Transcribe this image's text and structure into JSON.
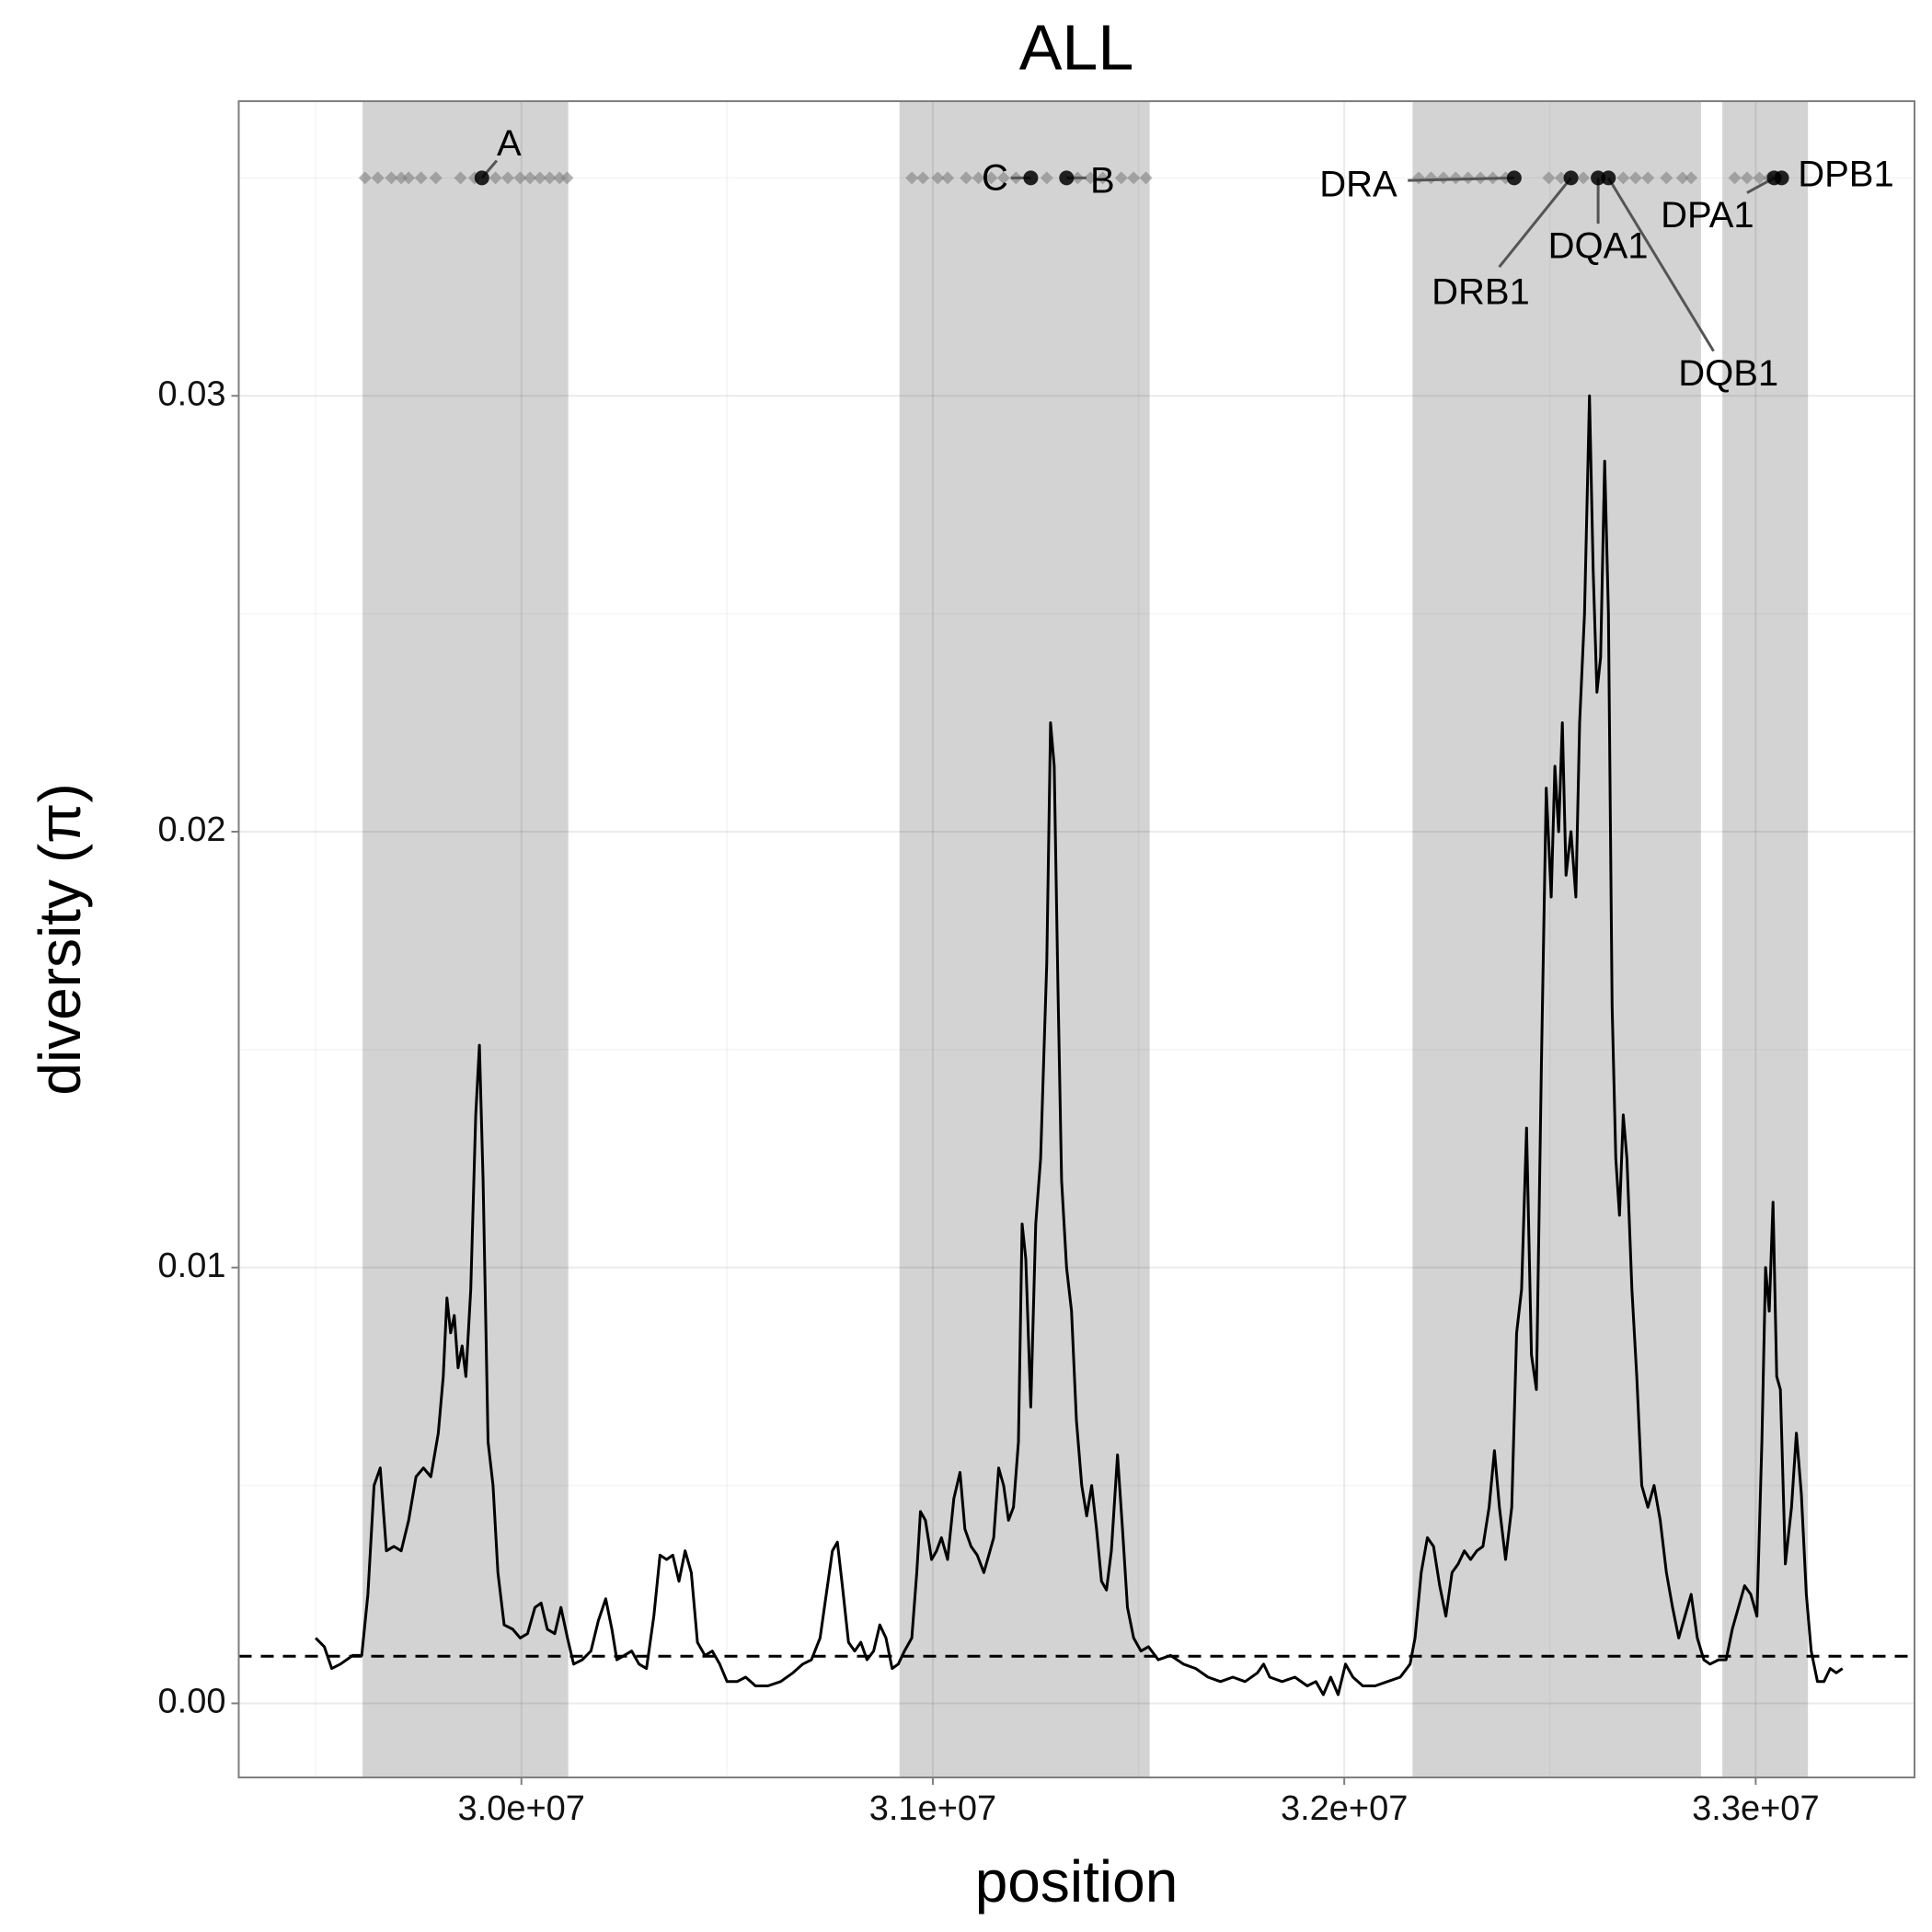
{
  "chart_data": {
    "type": "line",
    "title": "ALL",
    "x_label": "position",
    "y_label": "diversity (π)",
    "xlim": [
      29313000,
      33386000
    ],
    "ylim": [
      -0.0017,
      0.03676
    ],
    "xticks": [
      {
        "value": 30000000,
        "label": "3.0e+07"
      },
      {
        "value": 31000000,
        "label": "3.1e+07"
      },
      {
        "value": 32000000,
        "label": "3.2e+07"
      },
      {
        "value": 33000000,
        "label": "3.3e+07"
      }
    ],
    "yticks": [
      {
        "value": 0,
        "label": "0.00"
      },
      0.01,
      0.02,
      0.03
    ],
    "x_minor_ticks": [
      29500000,
      30500000,
      31500000,
      32500000
    ],
    "y_minor_ticks": [
      0.005,
      0.015,
      0.025,
      0.035
    ],
    "grid": true,
    "color": "#000000",
    "shaded_regions": [
      [
        29614000,
        30114000
      ],
      [
        30919000,
        31527000
      ],
      [
        32166000,
        32867000
      ],
      [
        32919000,
        33127000
      ]
    ],
    "shade_color": "#d3d3d3",
    "hline": 0.00108,
    "markers": {
      "y": 0.035,
      "color": "#808080",
      "x": [
        29620000,
        29651000,
        29684000,
        29708000,
        29726000,
        29756000,
        29792000,
        29852000,
        29886000,
        29937000,
        29967000,
        29997000,
        30021000,
        30045000,
        30069000,
        30093000,
        30111000,
        30949000,
        30976000,
        31012000,
        31036000,
        31081000,
        31111000,
        31142000,
        31172000,
        31202000,
        31277000,
        31352000,
        31383000,
        31413000,
        31458000,
        31488000,
        31518000,
        32181000,
        32211000,
        32241000,
        32271000,
        32301000,
        32331000,
        32361000,
        32392000,
        32497000,
        32527000,
        32581000,
        32678000,
        32708000,
        32738000,
        32783000,
        32822000,
        32843000,
        32949000,
        32979000,
        33009000,
        33033000
      ]
    },
    "genes": {
      "y": 0.035,
      "names": [
        "A",
        "C",
        "B",
        "DRA",
        "DRB1",
        "DQA1",
        "DQB1",
        "DPA1",
        "DPB1"
      ],
      "x": [
        29904000,
        31238000,
        31325000,
        32413000,
        32551000,
        32617000,
        32642000,
        33045000,
        33063000
      ]
    },
    "x": [
      29500000,
      29521000,
      29539000,
      29560000,
      29590000,
      29612000,
      29627000,
      29642000,
      29657000,
      29672000,
      29690000,
      29708000,
      29726000,
      29744000,
      29762000,
      29780000,
      29798000,
      29810000,
      29819000,
      29828000,
      29837000,
      29846000,
      29856000,
      29865000,
      29877000,
      29889000,
      29898000,
      29907000,
      29919000,
      29931000,
      29943000,
      29958000,
      29979000,
      29997000,
      30015000,
      30033000,
      30048000,
      30063000,
      30081000,
      30096000,
      30112000,
      30127000,
      30148000,
      30169000,
      30187000,
      30205000,
      30220000,
      30232000,
      30250000,
      30268000,
      30286000,
      30304000,
      30322000,
      30337000,
      30353000,
      30368000,
      30383000,
      30398000,
      30413000,
      30428000,
      30446000,
      30464000,
      30482000,
      30500000,
      30524000,
      30545000,
      30569000,
      30599000,
      30630000,
      30660000,
      30684000,
      30705000,
      30726000,
      30741000,
      30756000,
      30768000,
      30780000,
      30795000,
      30810000,
      30825000,
      30840000,
      30856000,
      30871000,
      30886000,
      30901000,
      30916000,
      30931000,
      30949000,
      30961000,
      30970000,
      30982000,
      30997000,
      31009000,
      31021000,
      31036000,
      31051000,
      31066000,
      31078000,
      31093000,
      31108000,
      31124000,
      31136000,
      31148000,
      31160000,
      31172000,
      31184000,
      31196000,
      31208000,
      31217000,
      31226000,
      31238000,
      31250000,
      31262000,
      31277000,
      31286000,
      31295000,
      31304000,
      31313000,
      31325000,
      31337000,
      31349000,
      31362000,
      31374000,
      31386000,
      31398000,
      31410000,
      31422000,
      31434000,
      31449000,
      31461000,
      31473000,
      31488000,
      31506000,
      31524000,
      31548000,
      31578000,
      31609000,
      31639000,
      31669000,
      31699000,
      31729000,
      31759000,
      31789000,
      31804000,
      31819000,
      31849000,
      31880000,
      31910000,
      31931000,
      31949000,
      31967000,
      31985000,
      32003000,
      32021000,
      32045000,
      32075000,
      32105000,
      32136000,
      32160000,
      32172000,
      32187000,
      32202000,
      32217000,
      32232000,
      32247000,
      32262000,
      32277000,
      32292000,
      32307000,
      32322000,
      32337000,
      32352000,
      32365000,
      32377000,
      32392000,
      32407000,
      32419000,
      32431000,
      32443000,
      32455000,
      32467000,
      32479000,
      32491000,
      32503000,
      32512000,
      32521000,
      32530000,
      32539000,
      32551000,
      32563000,
      32572000,
      32584000,
      32596000,
      32605000,
      32614000,
      32623000,
      32633000,
      32642000,
      32651000,
      32660000,
      32669000,
      32678000,
      32687000,
      32699000,
      32711000,
      32723000,
      32738000,
      32753000,
      32768000,
      32783000,
      32798000,
      32813000,
      32828000,
      32843000,
      32858000,
      32874000,
      32889000,
      32910000,
      32928000,
      32943000,
      32958000,
      32973000,
      32988000,
      33003000,
      33015000,
      33024000,
      33033000,
      33042000,
      33051000,
      33060000,
      33072000,
      33087000,
      33099000,
      33111000,
      33123000,
      33135000,
      33150000,
      33166000,
      33181000,
      33196000,
      33211000
    ],
    "values": [
      0.0015,
      0.0013,
      0.0008,
      0.0009,
      0.0011,
      0.0011,
      0.0025,
      0.005,
      0.0054,
      0.0035,
      0.0036,
      0.0035,
      0.0042,
      0.0052,
      0.0054,
      0.0052,
      0.0062,
      0.0075,
      0.0093,
      0.0085,
      0.0089,
      0.0077,
      0.0082,
      0.0075,
      0.0095,
      0.0135,
      0.0151,
      0.012,
      0.006,
      0.005,
      0.003,
      0.0018,
      0.0017,
      0.0015,
      0.0016,
      0.0022,
      0.0023,
      0.0017,
      0.0016,
      0.0022,
      0.0015,
      0.0009,
      0.001,
      0.0012,
      0.0019,
      0.0024,
      0.0017,
      0.001,
      0.0011,
      0.0012,
      0.0009,
      0.0008,
      0.002,
      0.0034,
      0.0033,
      0.0034,
      0.0028,
      0.0035,
      0.003,
      0.0014,
      0.0011,
      0.0012,
      0.0009,
      0.0005,
      0.0005,
      0.0006,
      0.0004,
      0.0004,
      0.0005,
      0.0007,
      0.0009,
      0.001,
      0.0015,
      0.0025,
      0.0035,
      0.0037,
      0.0027,
      0.0014,
      0.0012,
      0.0014,
      0.001,
      0.0012,
      0.0018,
      0.0015,
      0.0008,
      0.0009,
      0.0012,
      0.0015,
      0.003,
      0.0044,
      0.0042,
      0.0033,
      0.0035,
      0.0038,
      0.0033,
      0.0047,
      0.0053,
      0.004,
      0.0036,
      0.0034,
      0.003,
      0.0034,
      0.0038,
      0.0054,
      0.005,
      0.0042,
      0.0045,
      0.006,
      0.011,
      0.0102,
      0.0068,
      0.011,
      0.0125,
      0.017,
      0.0225,
      0.0215,
      0.0165,
      0.012,
      0.01,
      0.009,
      0.0065,
      0.005,
      0.0043,
      0.005,
      0.004,
      0.0028,
      0.0026,
      0.0035,
      0.0057,
      0.004,
      0.0022,
      0.0015,
      0.0012,
      0.0013,
      0.001,
      0.0011,
      0.0009,
      0.0008,
      0.0006,
      0.0005,
      0.0006,
      0.0005,
      0.0007,
      0.0009,
      0.0006,
      0.0005,
      0.0006,
      0.0004,
      0.0005,
      0.0002,
      0.0006,
      0.0002,
      0.0009,
      0.0006,
      0.0004,
      0.0004,
      0.0005,
      0.0006,
      0.0009,
      0.0015,
      0.003,
      0.0038,
      0.0036,
      0.0027,
      0.002,
      0.003,
      0.0032,
      0.0035,
      0.0033,
      0.0035,
      0.0036,
      0.0045,
      0.0058,
      0.0045,
      0.0033,
      0.0045,
      0.0085,
      0.0095,
      0.0132,
      0.008,
      0.0072,
      0.0146,
      0.021,
      0.0185,
      0.0215,
      0.02,
      0.0225,
      0.019,
      0.02,
      0.0185,
      0.0225,
      0.025,
      0.03,
      0.026,
      0.0232,
      0.024,
      0.0285,
      0.025,
      0.016,
      0.0125,
      0.0112,
      0.0135,
      0.0125,
      0.0095,
      0.0075,
      0.005,
      0.0045,
      0.005,
      0.0042,
      0.003,
      0.0022,
      0.0015,
      0.002,
      0.0025,
      0.0015,
      0.001,
      0.0009,
      0.001,
      0.001,
      0.0017,
      0.0022,
      0.0027,
      0.0025,
      0.002,
      0.006,
      0.01,
      0.009,
      0.0115,
      0.0075,
      0.0072,
      0.0032,
      0.0045,
      0.0062,
      0.0048,
      0.0025,
      0.0012,
      0.0005,
      0.0005,
      0.0008,
      0.0007,
      0.0008
    ]
  }
}
